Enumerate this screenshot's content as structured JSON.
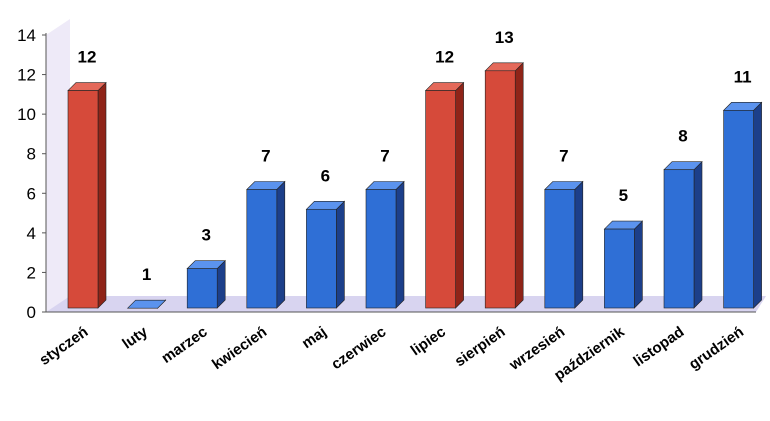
{
  "chart_data": {
    "type": "bar",
    "categories": [
      "styczeń",
      "luty",
      "marzec",
      "kwiecień",
      "maj",
      "czerwiec",
      "lipiec",
      "sierpień",
      "wrzesień",
      "październik",
      "listopad",
      "grudzień"
    ],
    "values": [
      12,
      1,
      3,
      7,
      6,
      7,
      12,
      13,
      7,
      5,
      8,
      11
    ],
    "highlight": [
      true,
      false,
      false,
      false,
      false,
      false,
      true,
      true,
      false,
      false,
      false,
      false
    ],
    "ylim": [
      0,
      14
    ],
    "yticks": [
      0,
      2,
      4,
      6,
      8,
      10,
      12,
      14
    ],
    "title": "",
    "xlabel": "",
    "ylabel": "",
    "grid": false,
    "legend": "none",
    "colors": {
      "normal_front": "#2f6fd6",
      "normal_side": "#1c3f8a",
      "normal_top": "#5b93ee",
      "highlight_front": "#d64a3a",
      "highlight_side": "#8f2418",
      "highlight_top": "#e4695a",
      "floor": "#d8d4f0",
      "wall": "#eeeaf8"
    }
  }
}
